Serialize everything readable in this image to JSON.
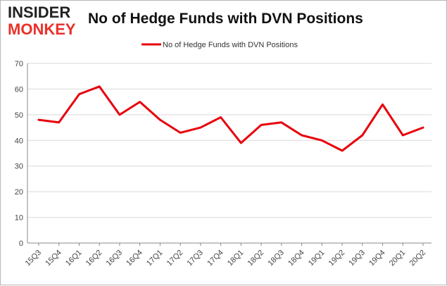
{
  "logo": {
    "line1": "INSIDER",
    "line2": "MONKEY"
  },
  "colors": {
    "series": "#e8000b",
    "grid": "#d9d9d9",
    "axis": "#888888",
    "logo_red": "#e8322b"
  },
  "chart_data": {
    "type": "line",
    "title": "No of Hedge Funds with DVN Positions",
    "xlabel": "",
    "ylabel": "",
    "categories": [
      "15Q3",
      "15Q4",
      "16Q1",
      "16Q2",
      "16Q3",
      "16Q4",
      "17Q1",
      "17Q2",
      "17Q3",
      "17Q4",
      "18Q1",
      "18Q2",
      "18Q3",
      "18Q4",
      "19Q1",
      "19Q2",
      "19Q3",
      "19Q4",
      "20Q1",
      "20Q2"
    ],
    "series": [
      {
        "name": "No of Hedge Funds with DVN Positions",
        "values": [
          48,
          47,
          58,
          61,
          50,
          55,
          48,
          43,
          45,
          49,
          39,
          46,
          47,
          42,
          40,
          36,
          42,
          54,
          42,
          45
        ]
      }
    ],
    "ylim": [
      0,
      70
    ],
    "yticks": [
      0,
      10,
      20,
      30,
      40,
      50,
      60,
      70
    ],
    "grid": true,
    "legend": "top-center"
  }
}
